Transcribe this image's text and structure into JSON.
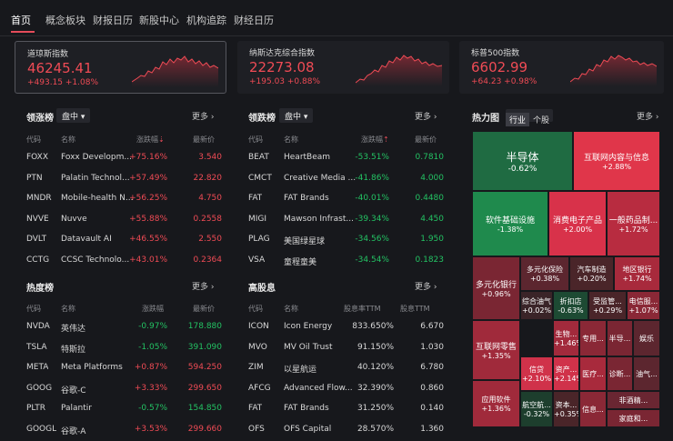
{
  "nav": {
    "tabs": [
      "首页",
      "概念板块",
      "财报日历",
      "新股中心",
      "机构追踪",
      "财经日历"
    ]
  },
  "indices": [
    {
      "name": "道琼斯指数",
      "value": "46245.41",
      "change": "+493.15 +1.08%"
    },
    {
      "name": "纳斯达克综合指数",
      "value": "22273.08",
      "change": "+195.03 +0.88%"
    },
    {
      "name": "标普500指数",
      "value": "6602.99",
      "change": "+64.23 +0.98%"
    }
  ],
  "gainers": {
    "title": "领涨榜",
    "dropdown": "盘中",
    "more": "更多",
    "headers": [
      "代码",
      "名称",
      "涨跌幅",
      "最新价"
    ],
    "rows": [
      {
        "code": "FOXX",
        "name": "Foxx Developm...",
        "chg": "+75.16%",
        "price": "3.540"
      },
      {
        "code": "PTN",
        "name": "Palatin Technol...",
        "chg": "+57.49%",
        "price": "22.820"
      },
      {
        "code": "MNDR",
        "name": "Mobile-health N...",
        "chg": "+56.25%",
        "price": "4.750"
      },
      {
        "code": "NVVE",
        "name": "Nuvve",
        "chg": "+55.88%",
        "price": "0.2558"
      },
      {
        "code": "DVLT",
        "name": "Datavault AI",
        "chg": "+46.55%",
        "price": "2.550"
      },
      {
        "code": "CCTG",
        "name": "CCSC Technolo...",
        "chg": "+43.01%",
        "price": "0.2364"
      }
    ]
  },
  "losers": {
    "title": "领跌榜",
    "dropdown": "盘中",
    "more": "更多",
    "headers": [
      "代码",
      "名称",
      "涨跌幅",
      "最新价"
    ],
    "rows": [
      {
        "code": "BEAT",
        "name": "HeartBeam",
        "chg": "-53.51%",
        "price": "0.7810"
      },
      {
        "code": "CMCT",
        "name": "Creative Media ...",
        "chg": "-41.86%",
        "price": "4.000"
      },
      {
        "code": "FAT",
        "name": "FAT Brands",
        "chg": "-40.01%",
        "price": "0.4480"
      },
      {
        "code": "MIGI",
        "name": "Mawson Infrast...",
        "chg": "-39.34%",
        "price": "4.450"
      },
      {
        "code": "PLAG",
        "name": "美国绿星球",
        "chg": "-34.56%",
        "price": "1.950"
      },
      {
        "code": "VSA",
        "name": "童程童美",
        "chg": "-34.54%",
        "price": "0.1823"
      }
    ]
  },
  "hot": {
    "title": "热度榜",
    "more": "更多",
    "headers": [
      "代码",
      "名称",
      "涨跌幅",
      "最新价"
    ],
    "rows": [
      {
        "code": "NVDA",
        "name": "英伟达",
        "chg": "-0.97%",
        "price": "178.880",
        "dir": "dn"
      },
      {
        "code": "TSLA",
        "name": "特斯拉",
        "chg": "-1.05%",
        "price": "391.090",
        "dir": "dn"
      },
      {
        "code": "META",
        "name": "Meta Platforms",
        "chg": "+0.87%",
        "price": "594.250",
        "dir": "up"
      },
      {
        "code": "GOOG",
        "name": "谷歌-C",
        "chg": "+3.33%",
        "price": "299.650",
        "dir": "up"
      },
      {
        "code": "PLTR",
        "name": "Palantir",
        "chg": "-0.57%",
        "price": "154.850",
        "dir": "dn"
      },
      {
        "code": "GOOGL",
        "name": "谷歌-A",
        "chg": "+3.53%",
        "price": "299.660",
        "dir": "up"
      }
    ]
  },
  "dividend": {
    "title": "高股息",
    "more": "更多",
    "headers": [
      "代码",
      "名称",
      "股息率TTM",
      "股息TTM"
    ],
    "rows": [
      {
        "code": "ICON",
        "name": "Icon Energy",
        "chg": "833.650%",
        "price": "6.670"
      },
      {
        "code": "MVO",
        "name": "MV Oil Trust",
        "chg": "91.150%",
        "price": "1.030"
      },
      {
        "code": "ZIM",
        "name": "以星航运",
        "chg": "40.120%",
        "price": "6.780"
      },
      {
        "code": "AFCG",
        "name": "Advanced Flow...",
        "chg": "32.390%",
        "price": "0.860"
      },
      {
        "code": "FAT",
        "name": "FAT Brands",
        "chg": "31.250%",
        "price": "0.140"
      },
      {
        "code": "OFS",
        "name": "OFS Capital",
        "chg": "28.570%",
        "price": "1.360"
      }
    ]
  },
  "heatmap": {
    "title": "热力图",
    "tabs": [
      "行业",
      "个股"
    ],
    "more": "更多",
    "tiles": [
      {
        "name": "半导体",
        "chg": "-0.62%",
        "color": "#1f6b42"
      },
      {
        "name": "互联网内容与信息",
        "chg": "+2.88%",
        "color": "#e0364a"
      },
      {
        "name": "软件基础设施",
        "chg": "-1.38%",
        "color": "#1f8a4d"
      },
      {
        "name": "消费电子产品",
        "chg": "+2.00%",
        "color": "#d8324a"
      },
      {
        "name": "一般药品制...",
        "chg": "+1.72%",
        "color": "#b82c40"
      },
      {
        "name": "多元化银行",
        "chg": "+0.96%",
        "color": "#7a2633"
      },
      {
        "name": "多元化保险",
        "chg": "+0.38%",
        "color": "#5c262f"
      },
      {
        "name": "汽车制造",
        "chg": "+0.20%",
        "color": "#4a2529"
      },
      {
        "name": "地区银行",
        "chg": "+1.74%",
        "color": "#a82a3c"
      },
      {
        "name": "综合油气",
        "chg": "+0.02%",
        "color": "#3a2428"
      },
      {
        "name": "折扣店",
        "chg": "-0.63%",
        "color": "#1d4a33"
      },
      {
        "name": "受监管...",
        "chg": "+0.29%",
        "color": "#4a2529"
      },
      {
        "name": "电信服...",
        "chg": "+1.07%",
        "color": "#8a2836"
      },
      {
        "name": "互联网零售",
        "chg": "+1.35%",
        "color": "#a02a3b"
      },
      {
        "name": "生物...",
        "chg": "+1.46%",
        "color": "#a22a3c"
      },
      {
        "name": "专用...",
        "chg": "",
        "color": "#8a2836"
      },
      {
        "name": "半导...",
        "chg": "",
        "color": "#7a2633"
      },
      {
        "name": "娱乐",
        "chg": "",
        "color": "#5c262f"
      },
      {
        "name": "信贷",
        "chg": "+2.10%",
        "color": "#d0324a"
      },
      {
        "name": "资产...",
        "chg": "+2.14%",
        "color": "#d0324a"
      },
      {
        "name": "医疗...",
        "chg": "",
        "color": "#a82a3c"
      },
      {
        "name": "诊断...",
        "chg": "",
        "color": "#7a2633"
      },
      {
        "name": "油气...",
        "chg": "",
        "color": "#5c262f"
      },
      {
        "name": "应用软件",
        "chg": "+1.36%",
        "color": "#a02a3b"
      },
      {
        "name": "航空航...",
        "chg": "-0.32%",
        "color": "#1d3e2d"
      },
      {
        "name": "资本...",
        "chg": "+0.35%",
        "color": "#4a2529"
      },
      {
        "name": "信息...",
        "chg": "",
        "color": "#8a2836"
      },
      {
        "name": "非酒精...",
        "chg": "",
        "color": "#6a2632"
      },
      {
        "name": "家庭和...",
        "chg": "",
        "color": "#7a2633"
      }
    ]
  }
}
